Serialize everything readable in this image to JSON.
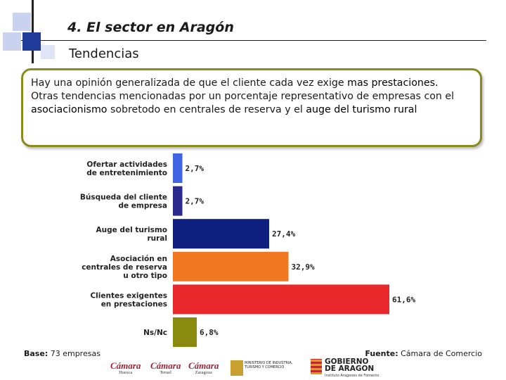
{
  "header": {
    "title": "4. El sector en Aragón",
    "subtitle": "Tendencias"
  },
  "summary": {
    "line1_prefix": "Hay una opinión generalizada de que el cliente cada vez exige ",
    "line1_emphasis": "mas prestaciones.",
    "line2_prefix": "Otras tendencias mencionadas por un porcentaje representativo de empresas con el ",
    "line2_emphasis1": "asociacionismo",
    "line2_middle": " sobretodo en centrales de reserva y el ",
    "line2_emphasis2": "auge del turismo rural"
  },
  "chart_data": {
    "type": "bar",
    "orientation": "horizontal",
    "categories": [
      [
        "Ofertar actividades",
        "de entretenimiento"
      ],
      [
        "Búsqueda del cliente",
        "de empresa"
      ],
      [
        "Auge del turismo",
        "rural"
      ],
      [
        "Asociación en",
        "centrales de reserva",
        "u otro tipo"
      ],
      [
        "Clientes exigentes",
        "en prestaciones"
      ],
      [
        "Ns/Nc"
      ]
    ],
    "values": [
      2.7,
      2.7,
      27.4,
      32.9,
      61.6,
      6.8
    ],
    "value_labels": [
      "2,7%",
      "2,7%",
      "27,4%",
      "32,9%",
      "61,6%",
      "6,8%"
    ],
    "colors": [
      "#3f66e0",
      "#2a2a8c",
      "#0f1f80",
      "#f07820",
      "#e8282a",
      "#8a8a0f"
    ],
    "xlim": [
      0,
      65
    ],
    "grid": false,
    "legend": "none",
    "xlabel": "",
    "ylabel": ""
  },
  "footer": {
    "base_label": "Base:",
    "base_value": " 73 empresas",
    "source_label": "Fuente:",
    "source_value": " Cámara de Comercio"
  },
  "logos": {
    "camara1": "Cámara",
    "camara1_city": "Huesca",
    "camara2": "Cámara",
    "camara2_city": "Teruel",
    "camara3": "Cámara",
    "camara3_city": "Zaragoza",
    "ministerio": "MINISTERIO DE INDUSTRIA, TURISMO Y COMERCIO",
    "gobierno": "GOBIERNO DE ARAGON",
    "gobierno_sub": "Instituto Aragonés de Fomento"
  }
}
